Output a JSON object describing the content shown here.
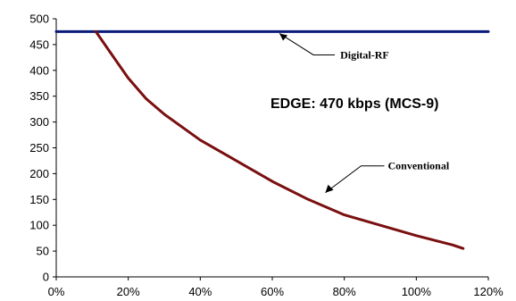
{
  "chart_data": {
    "type": "line",
    "xlim": [
      0,
      120
    ],
    "ylim": [
      0,
      500
    ],
    "x_ticks": [
      "0%",
      "20%",
      "40%",
      "60%",
      "80%",
      "100%",
      "120%"
    ],
    "y_ticks": [
      "0",
      "50",
      "100",
      "150",
      "200",
      "250",
      "300",
      "350",
      "400",
      "450",
      "500"
    ],
    "grid": false,
    "legend": "none",
    "series": [
      {
        "color": "#0a1a7a",
        "x": [
          0,
          120
        ],
        "y": [
          475,
          475
        ]
      },
      {
        "color": "#7a0f10",
        "x": [
          11,
          15,
          20,
          25,
          30,
          40,
          50,
          60,
          70,
          80,
          90,
          100,
          110,
          113
        ],
        "y": [
          475,
          435,
          385,
          345,
          315,
          265,
          225,
          185,
          150,
          120,
          100,
          80,
          62,
          55
        ]
      }
    ],
    "annotations": {
      "digital": {
        "text": "Digital-RF",
        "x": 62,
        "y": 475
      },
      "conventional": {
        "text": "Conventional",
        "x": 75,
        "y": 170
      },
      "edge": {
        "text": "EDGE: 470 kbps (MCS-9)"
      }
    }
  }
}
